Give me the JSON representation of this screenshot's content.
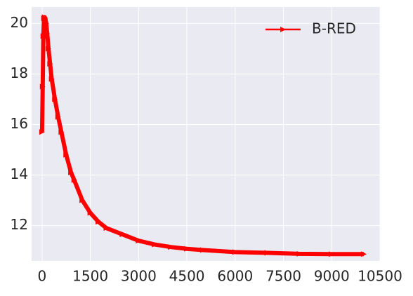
{
  "chart_data": {
    "type": "line",
    "x": [
      0,
      20,
      40,
      60,
      80,
      100,
      130,
      160,
      200,
      250,
      300,
      400,
      500,
      600,
      750,
      900,
      1000,
      1250,
      1500,
      1750,
      2000,
      2500,
      3000,
      3500,
      4000,
      4500,
      5000,
      6000,
      7000,
      8000,
      9000,
      10000
    ],
    "series": [
      {
        "name": "B-RED",
        "color": "#ff0000",
        "values": [
          15.7,
          17.5,
          19.5,
          20.2,
          20.25,
          20.2,
          20.0,
          19.6,
          19.0,
          18.4,
          17.8,
          17.0,
          16.3,
          15.7,
          14.8,
          14.1,
          13.8,
          13.0,
          12.5,
          12.15,
          11.9,
          11.65,
          11.4,
          11.25,
          11.15,
          11.08,
          11.03,
          10.95,
          10.92,
          10.88,
          10.87,
          10.87
        ]
      }
    ],
    "xlim": [
      -325,
      10500
    ],
    "xticks": [
      0,
      1500,
      3000,
      4500,
      6000,
      7500,
      9000,
      10500
    ],
    "ylim": [
      10.6,
      20.65
    ],
    "yticks": [
      12,
      14,
      16,
      18,
      20
    ],
    "grid": true,
    "legend": "upper right"
  }
}
